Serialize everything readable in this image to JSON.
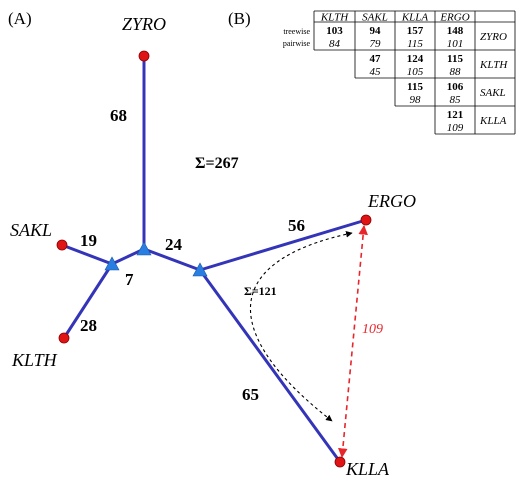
{
  "panels": {
    "a": "(A)",
    "b": "(B)"
  },
  "taxa": {
    "zyro": "ZYRO",
    "ergo": "ERGO",
    "sakl": "SAKL",
    "klth": "KLTH",
    "klla": "KLLA"
  },
  "branches": {
    "zyro": "68",
    "sakl": "19",
    "klth": "28",
    "inner_short": "7",
    "inner_long": "24",
    "ergo": "56",
    "klla": "65"
  },
  "tree_sum": "Σ=267",
  "path_sum": "Σ=121",
  "pairwise_ergo_klla": "109",
  "table": {
    "col_headers": [
      "KLTH",
      "SAKL",
      "KLLA",
      "ERGO"
    ],
    "row_labels": {
      "treewise": "treewise",
      "pairwise": "pairwise"
    },
    "rows": [
      {
        "label": "ZYRO",
        "treewise": [
          "103",
          "94",
          "157",
          "148"
        ],
        "pairwise": [
          "84",
          "79",
          "115",
          "101"
        ]
      },
      {
        "label": "KLTH",
        "treewise": [
          "47",
          "124",
          "115"
        ],
        "pairwise": [
          "45",
          "105",
          "88"
        ]
      },
      {
        "label": "SAKL",
        "treewise": [
          "115",
          "106"
        ],
        "pairwise": [
          "98",
          "85"
        ]
      },
      {
        "label": "KLLA",
        "treewise": [
          "121"
        ],
        "pairwise": [
          "109"
        ]
      }
    ]
  },
  "colors": {
    "edge": "#3434b8",
    "leaf": "#e01414",
    "internal_node": "#2a7de1",
    "pairwise_highlight": "#e8252b"
  }
}
